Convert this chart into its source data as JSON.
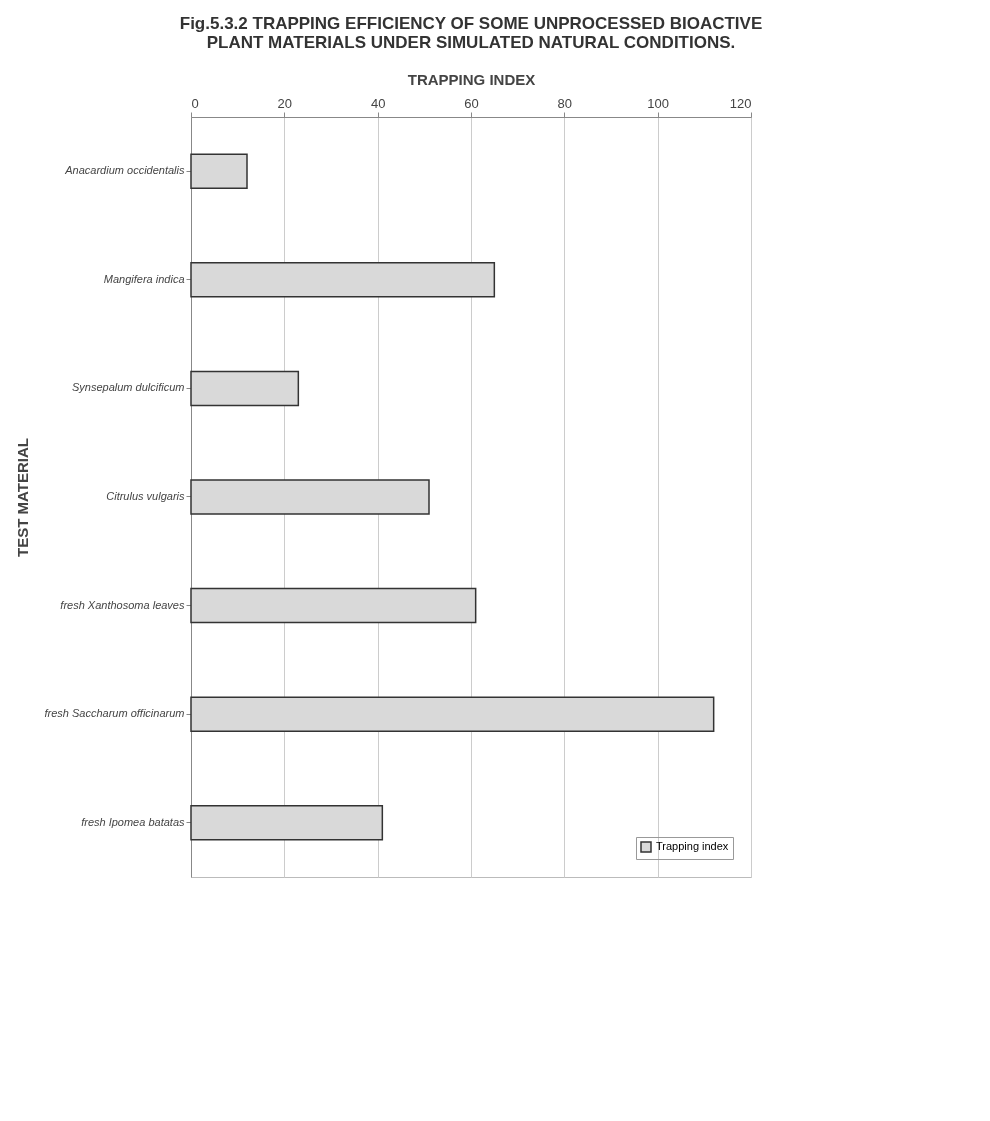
{
  "chart_data": {
    "type": "bar",
    "orientation": "horizontal",
    "title": "Fig.5.3.2  TRAPPING EFFICIENCY OF SOME UNPROCESSED BIOACTIVE PLANT MATERIALS UNDER SIMULATED NATURAL CONDITIONS.",
    "xlabel": "TRAPPING INDEX",
    "ylabel": "TEST MATERIAL",
    "categories": [
      "Anacardium occidentalis",
      "Mangifera indica",
      "Synsepalum dulcificum",
      "Citrulus vulgaris",
      "fresh Xanthosoma leaves",
      "fresh Saccharum officinarum",
      "fresh Ipomea batatas"
    ],
    "series": [
      {
        "name": "Trapping index",
        "color": "#d9d9d9",
        "values": [
          12,
          65,
          23,
          51,
          61,
          112,
          41
        ]
      }
    ],
    "xlim": [
      0,
      120
    ],
    "xticks": [
      0,
      20,
      40,
      60,
      80,
      100,
      120
    ],
    "grid": "x",
    "legend": "bottom right"
  }
}
